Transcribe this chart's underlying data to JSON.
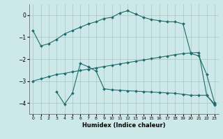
{
  "xlabel": "Humidex (Indice chaleur)",
  "bg_color": "#cde8e8",
  "grid_color": "#b0c8c8",
  "line_color": "#1e6b6b",
  "xlim": [
    -0.5,
    23.5
  ],
  "ylim": [
    -4.5,
    0.5
  ],
  "yticks": [
    0,
    -1,
    -2,
    -3,
    -4
  ],
  "xticks": [
    0,
    1,
    2,
    3,
    4,
    5,
    6,
    7,
    8,
    9,
    10,
    11,
    12,
    13,
    14,
    15,
    16,
    17,
    18,
    19,
    20,
    21,
    22,
    23
  ],
  "curve1_x": [
    0,
    1,
    2,
    3,
    4,
    5,
    6,
    7,
    8,
    9,
    10,
    11,
    12,
    13,
    14,
    15,
    16,
    17,
    18,
    19,
    20,
    21,
    22,
    23
  ],
  "curve1_y": [
    -0.7,
    -1.4,
    -1.3,
    -1.1,
    -0.85,
    -0.7,
    -0.55,
    -0.4,
    -0.3,
    -0.15,
    -0.1,
    0.1,
    0.2,
    0.05,
    -0.1,
    -0.2,
    -0.25,
    -0.3,
    -0.3,
    -0.4,
    -1.75,
    -1.85,
    -2.7,
    -4.0
  ],
  "curve2_x": [
    0,
    1,
    2,
    3,
    4,
    5,
    6,
    7,
    8,
    9,
    10,
    11,
    12,
    13,
    14,
    15,
    16,
    17,
    18,
    19,
    20,
    21,
    22,
    23
  ],
  "curve2_y": [
    -3.0,
    -2.9,
    -2.8,
    -2.7,
    -2.65,
    -2.58,
    -2.52,
    -2.46,
    -2.4,
    -2.34,
    -2.28,
    -2.22,
    -2.16,
    -2.1,
    -2.04,
    -1.98,
    -1.92,
    -1.86,
    -1.8,
    -1.75,
    -1.72,
    -1.7,
    -3.65,
    -4.05
  ],
  "curve3_x": [
    3,
    4,
    5,
    6,
    7,
    8,
    9,
    10,
    11,
    12,
    13,
    14,
    15,
    16,
    17,
    18,
    19,
    20,
    21,
    22,
    23
  ],
  "curve3_y": [
    -3.5,
    -4.05,
    -3.55,
    -2.2,
    -2.35,
    -2.55,
    -3.35,
    -3.4,
    -3.42,
    -3.44,
    -3.46,
    -3.48,
    -3.5,
    -3.52,
    -3.54,
    -3.56,
    -3.6,
    -3.65,
    -3.65,
    -3.65,
    -4.1
  ]
}
